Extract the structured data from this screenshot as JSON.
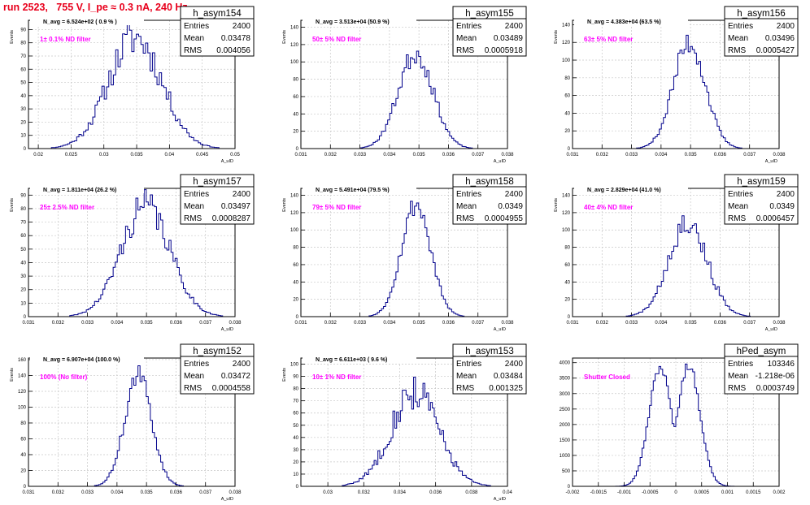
{
  "page_title": "run 2523,   755 V, I_pe ≈ 0.3 nA, 240 Hz",
  "colors": {
    "histogram": "#00008b",
    "grid": "#c8c8c8",
    "axis": "#000000",
    "filter_label": "#ff00ff",
    "run_title": "#e8001c"
  },
  "chart_data": [
    {
      "type": "histogram",
      "name": "h_asym154",
      "avg_label": "N_avg = 6.524e+02 ( 0.9 % )",
      "filter_label": "1± 0.1% ND filter",
      "stats": {
        "entries_label": "Entries",
        "entries": "2400",
        "mean_label": "Mean",
        "mean": "0.03478",
        "rms_label": "RMS",
        "rms": "0.004056"
      },
      "xlabel": "A_uID",
      "ylabel": "Events",
      "xlim": [
        0.0185,
        0.05
      ],
      "ylim": [
        0,
        97
      ],
      "xticks": [
        "0.02",
        "0.025",
        "0.03",
        "0.035",
        "0.04",
        "0.045",
        "0.05"
      ],
      "yticks": [
        "0",
        "10",
        "20",
        "30",
        "40",
        "50",
        "60",
        "70",
        "80",
        "90"
      ],
      "grid": true,
      "gauss": {
        "mean": 0.03478,
        "sigma": 0.004056,
        "amp": 84,
        "bins": 90,
        "seed": 11,
        "noise": 0.18
      }
    },
    {
      "type": "histogram",
      "name": "h_asym155",
      "avg_label": "N_avg = 3.513e+04 (50.9 %)",
      "filter_label": "50± 5% ND filter",
      "stats": {
        "entries_label": "Entries",
        "entries": "2400",
        "mean_label": "Mean",
        "mean": "0.03489",
        "rms_label": "RMS",
        "rms": "0.0005918"
      },
      "xlabel": "A_uID",
      "ylabel": "Events",
      "xlim": [
        0.031,
        0.038
      ],
      "ylim": [
        0,
        148
      ],
      "xticks": [
        "0.031",
        "0.032",
        "0.033",
        "0.034",
        "0.035",
        "0.036",
        "0.037",
        "0.038"
      ],
      "yticks": [
        "0",
        "20",
        "40",
        "60",
        "80",
        "100",
        "120",
        "140"
      ],
      "grid": true,
      "gauss": {
        "mean": 0.03489,
        "sigma": 0.0005918,
        "amp": 110,
        "bins": 100,
        "seed": 23,
        "noise": 0.12
      }
    },
    {
      "type": "histogram",
      "name": "h_asym156",
      "avg_label": "N_avg = 4.383e+04 (63.5 %)",
      "filter_label": "63± 5% ND filter",
      "stats": {
        "entries_label": "Entries",
        "entries": "2400",
        "mean_label": "Mean",
        "mean": "0.03496",
        "rms_label": "RMS",
        "rms": "0.0005427"
      },
      "xlabel": "A_uID",
      "ylabel": "Events",
      "xlim": [
        0.031,
        0.038
      ],
      "ylim": [
        0,
        145
      ],
      "xticks": [
        "0.031",
        "0.032",
        "0.033",
        "0.034",
        "0.035",
        "0.036",
        "0.037",
        "0.038"
      ],
      "yticks": [
        "0",
        "20",
        "40",
        "60",
        "80",
        "100",
        "120",
        "140"
      ],
      "grid": true,
      "gauss": {
        "mean": 0.03496,
        "sigma": 0.0005427,
        "amp": 120,
        "bins": 100,
        "seed": 37,
        "noise": 0.12
      }
    },
    {
      "type": "histogram",
      "name": "h_asym157",
      "avg_label": "N_avg = 1.811e+04 (26.2 %)",
      "filter_label": "25± 2.5% ND filter",
      "stats": {
        "entries_label": "Entries",
        "entries": "2400",
        "mean_label": "Mean",
        "mean": "0.03497",
        "rms_label": "RMS",
        "rms": "0.0008287"
      },
      "xlabel": "A_uID",
      "ylabel": "Events",
      "xlim": [
        0.031,
        0.038
      ],
      "ylim": [
        0,
        95
      ],
      "xticks": [
        "0.031",
        "0.032",
        "0.033",
        "0.034",
        "0.035",
        "0.036",
        "0.037",
        "0.038"
      ],
      "yticks": [
        "0",
        "10",
        "20",
        "30",
        "40",
        "50",
        "60",
        "70",
        "80",
        "90"
      ],
      "grid": true,
      "gauss": {
        "mean": 0.03497,
        "sigma": 0.0008287,
        "amp": 82,
        "bins": 100,
        "seed": 41,
        "noise": 0.15
      }
    },
    {
      "type": "histogram",
      "name": "h_asym158",
      "avg_label": "N_avg = 5.491e+04 (79.5 %)",
      "filter_label": "79± 5% ND filter",
      "stats": {
        "entries_label": "Entries",
        "entries": "2400",
        "mean_label": "Mean",
        "mean": "0.0349",
        "rms_label": "RMS",
        "rms": "0.0004955"
      },
      "xlabel": "A_uID",
      "ylabel": "Events",
      "xlim": [
        0.031,
        0.038
      ],
      "ylim": [
        0,
        148
      ],
      "xticks": [
        "0.031",
        "0.032",
        "0.033",
        "0.034",
        "0.035",
        "0.036",
        "0.037",
        "0.038"
      ],
      "yticks": [
        "0",
        "20",
        "40",
        "60",
        "80",
        "100",
        "120",
        "140"
      ],
      "grid": true,
      "gauss": {
        "mean": 0.0349,
        "sigma": 0.0004955,
        "amp": 130,
        "bins": 100,
        "seed": 53,
        "noise": 0.1
      }
    },
    {
      "type": "histogram",
      "name": "h_asym159",
      "avg_label": "N_avg = 2.829e+04 (41.0 %)",
      "filter_label": "40± 4% ND filter",
      "stats": {
        "entries_label": "Entries",
        "entries": "2400",
        "mean_label": "Mean",
        "mean": "0.0349",
        "rms_label": "RMS",
        "rms": "0.0006457"
      },
      "xlabel": "A_uID",
      "ylabel": "Events",
      "xlim": [
        0.031,
        0.038
      ],
      "ylim": [
        0,
        148
      ],
      "xticks": [
        "0.031",
        "0.032",
        "0.033",
        "0.034",
        "0.035",
        "0.036",
        "0.037",
        "0.038"
      ],
      "yticks": [
        "0",
        "20",
        "40",
        "60",
        "80",
        "100",
        "120",
        "140"
      ],
      "grid": true,
      "gauss": {
        "mean": 0.0349,
        "sigma": 0.0006457,
        "amp": 110,
        "bins": 100,
        "seed": 67,
        "noise": 0.14
      }
    },
    {
      "type": "histogram",
      "name": "h_asym152",
      "avg_label": "N_avg = 6.907e+04 (100.0 %)",
      "filter_label": "100% (No filter)",
      "stats": {
        "entries_label": "Entries",
        "entries": "2400",
        "mean_label": "Mean",
        "mean": "0.03472",
        "rms_label": "RMS",
        "rms": "0.0004558"
      },
      "xlabel": "A_uID",
      "ylabel": "Events",
      "xlim": [
        0.031,
        0.038
      ],
      "ylim": [
        0,
        162
      ],
      "xticks": [
        "0.031",
        "0.032",
        "0.033",
        "0.034",
        "0.035",
        "0.036",
        "0.037",
        "0.038"
      ],
      "yticks": [
        "0",
        "20",
        "40",
        "60",
        "80",
        "100",
        "120",
        "140",
        "160"
      ],
      "grid": true,
      "gauss": {
        "mean": 0.03472,
        "sigma": 0.0004558,
        "amp": 140,
        "bins": 100,
        "seed": 71,
        "noise": 0.1
      }
    },
    {
      "type": "histogram",
      "name": "h_asym153",
      "avg_label": "N_avg = 6.611e+03 ( 9.6 %)",
      "filter_label": "10± 1% ND filter",
      "stats": {
        "entries_label": "Entries",
        "entries": "2400",
        "mean_label": "Mean",
        "mean": "0.03484",
        "rms_label": "RMS",
        "rms": "0.001325"
      },
      "xlabel": "A_uID",
      "ylabel": "Events",
      "xlim": [
        0.0285,
        0.04
      ],
      "ylim": [
        0,
        105
      ],
      "xticks": [
        "0.03",
        "0.032",
        "0.034",
        "0.036",
        "0.038",
        "0.04"
      ],
      "yticks": [
        "0",
        "10",
        "20",
        "30",
        "40",
        "50",
        "60",
        "70",
        "80",
        "90",
        "100"
      ],
      "grid": true,
      "gauss": {
        "mean": 0.03484,
        "sigma": 0.001325,
        "amp": 78,
        "bins": 110,
        "seed": 83,
        "noise": 0.2
      }
    },
    {
      "type": "histogram",
      "name": "hPed_asym",
      "avg_label": "",
      "filter_label": "Shutter Closed",
      "stats": {
        "entries_label": "Entries",
        "entries": "103346",
        "mean_label": "Mean",
        "mean": "-1.218e-06",
        "rms_label": "RMS",
        "rms": "0.0003749"
      },
      "xlabel": "",
      "ylabel": "",
      "xlim": [
        -0.002,
        0.002
      ],
      "ylim": [
        0,
        4150
      ],
      "xticks": [
        "-0.002",
        "-0.0015",
        "-0.001",
        "-0.0005",
        "0",
        "0.0005",
        "0.001",
        "0.0015",
        "0.002"
      ],
      "yticks": [
        "0",
        "500",
        "1000",
        "1500",
        "2000",
        "2500",
        "3000",
        "3500",
        "4000"
      ],
      "grid": true,
      "double_gauss": {
        "mean1": -0.0003,
        "mean2": 0.00025,
        "sigma": 0.00022,
        "amp": 3850,
        "bins": 110,
        "seed": 97,
        "noise": 0.04
      }
    }
  ]
}
